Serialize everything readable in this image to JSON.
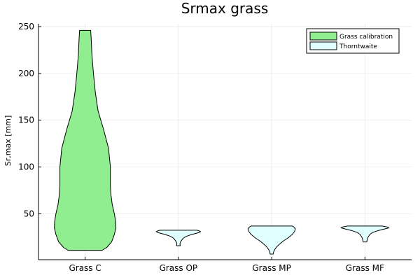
{
  "chart_data": {
    "type": "violin",
    "title": "Srmax grass",
    "xlabel": "",
    "ylabel": "Sr,max [mm]",
    "ylim": [
      1,
      253
    ],
    "yticks": [
      50,
      100,
      150,
      200,
      250
    ],
    "grid": true,
    "legend_position": "top-right",
    "categories": [
      "Grass C",
      "Grass OP",
      "Grass MP",
      "Grass MF"
    ],
    "series": [
      {
        "name": "Grass calibration",
        "color": "#90ee90",
        "violins": [
          {
            "category": "Grass C",
            "min": 11,
            "max": 246,
            "profile": [
              [
                11,
                0.55
              ],
              [
                14,
                0.7
              ],
              [
                20,
                0.86
              ],
              [
                28,
                0.95
              ],
              [
                35,
                1.0
              ],
              [
                42,
                0.99
              ],
              [
                50,
                0.95
              ],
              [
                60,
                0.88
              ],
              [
                70,
                0.84
              ],
              [
                80,
                0.82
              ],
              [
                100,
                0.82
              ],
              [
                120,
                0.76
              ],
              [
                140,
                0.6
              ],
              [
                160,
                0.42
              ],
              [
                180,
                0.33
              ],
              [
                200,
                0.27
              ],
              [
                220,
                0.22
              ],
              [
                235,
                0.2
              ],
              [
                246,
                0.18
              ]
            ]
          }
        ]
      },
      {
        "name": "Thorntwaite",
        "color": "#e0ffff",
        "violins": [
          {
            "category": "Grass OP",
            "min": 16,
            "max": 32.5,
            "profile": [
              [
                16,
                0.06
              ],
              [
                18,
                0.05
              ],
              [
                20,
                0.07
              ],
              [
                22,
                0.11
              ],
              [
                24,
                0.16
              ],
              [
                26,
                0.26
              ],
              [
                28,
                0.44
              ],
              [
                30,
                0.67
              ],
              [
                31,
                0.72
              ],
              [
                32,
                0.66
              ],
              [
                32.5,
                0.6
              ]
            ]
          },
          {
            "category": "Grass MP",
            "min": 7,
            "max": 37,
            "profile": [
              [
                7,
                0.05
              ],
              [
                9,
                0.06
              ],
              [
                12,
                0.1
              ],
              [
                15,
                0.17
              ],
              [
                18,
                0.27
              ],
              [
                21,
                0.38
              ],
              [
                24,
                0.52
              ],
              [
                28,
                0.67
              ],
              [
                31,
                0.74
              ],
              [
                34,
                0.77
              ],
              [
                36,
                0.72
              ],
              [
                37,
                0.66
              ]
            ]
          },
          {
            "category": "Grass MF",
            "min": 20,
            "max": 37,
            "profile": [
              [
                20,
                0.06
              ],
              [
                22,
                0.07
              ],
              [
                25,
                0.1
              ],
              [
                28,
                0.16
              ],
              [
                30,
                0.24
              ],
              [
                32,
                0.42
              ],
              [
                34,
                0.66
              ],
              [
                35,
                0.78
              ],
              [
                36,
                0.72
              ],
              [
                37,
                0.56
              ]
            ]
          }
        ]
      }
    ]
  }
}
